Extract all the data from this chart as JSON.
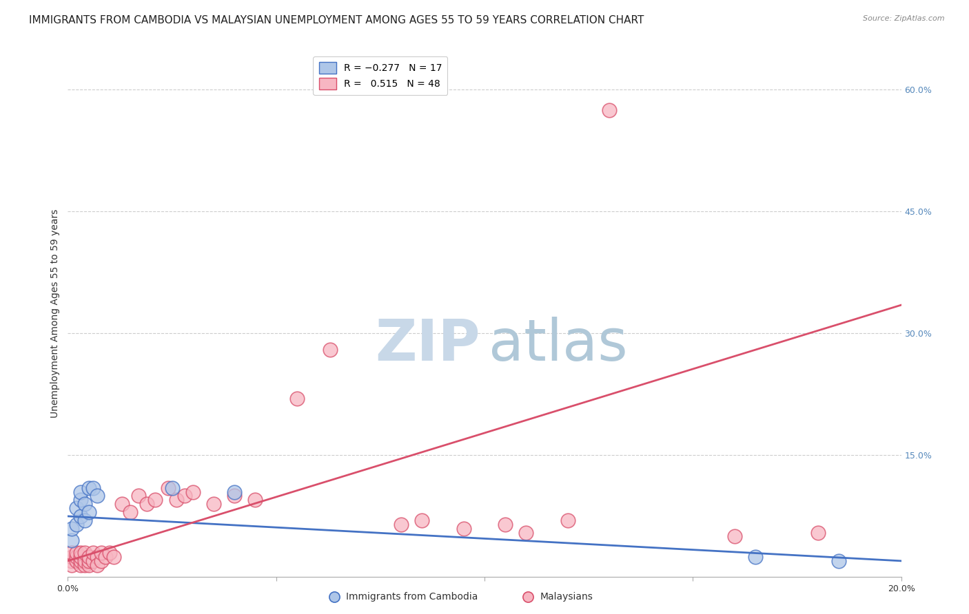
{
  "title": "IMMIGRANTS FROM CAMBODIA VS MALAYSIAN UNEMPLOYMENT AMONG AGES 55 TO 59 YEARS CORRELATION CHART",
  "source": "Source: ZipAtlas.com",
  "ylabel": "Unemployment Among Ages 55 to 59 years",
  "xlim": [
    0.0,
    0.2
  ],
  "ylim": [
    0.0,
    0.65
  ],
  "right_yticks": [
    0.0,
    0.15,
    0.3,
    0.45,
    0.6
  ],
  "right_yticklabels": [
    "",
    "15.0%",
    "30.0%",
    "45.0%",
    "60.0%"
  ],
  "xticks": [
    0.0,
    0.05,
    0.1,
    0.15,
    0.2
  ],
  "xticklabels": [
    "0.0%",
    "",
    "",
    "",
    "20.0%"
  ],
  "scatter_blue_color": "#aec6e8",
  "scatter_pink_color": "#f7b6c2",
  "line_blue_color": "#4472c4",
  "line_pink_color": "#d94f6b",
  "line_blue_y0": 0.075,
  "line_blue_y1": 0.02,
  "line_pink_y0": 0.02,
  "line_pink_y1": 0.335,
  "blue_x": [
    0.001,
    0.001,
    0.002,
    0.002,
    0.003,
    0.003,
    0.003,
    0.004,
    0.004,
    0.005,
    0.005,
    0.006,
    0.007,
    0.025,
    0.04,
    0.165,
    0.185
  ],
  "blue_y": [
    0.045,
    0.06,
    0.065,
    0.085,
    0.075,
    0.095,
    0.105,
    0.07,
    0.09,
    0.08,
    0.11,
    0.11,
    0.1,
    0.11,
    0.105,
    0.025,
    0.02
  ],
  "pink_x": [
    0.001,
    0.001,
    0.001,
    0.001,
    0.002,
    0.002,
    0.002,
    0.003,
    0.003,
    0.003,
    0.003,
    0.004,
    0.004,
    0.004,
    0.005,
    0.005,
    0.005,
    0.006,
    0.006,
    0.007,
    0.007,
    0.008,
    0.008,
    0.009,
    0.01,
    0.011,
    0.013,
    0.015,
    0.017,
    0.019,
    0.021,
    0.024,
    0.026,
    0.028,
    0.03,
    0.035,
    0.04,
    0.045,
    0.055,
    0.08,
    0.085,
    0.095,
    0.105,
    0.11,
    0.12,
    0.16,
    0.18,
    0.063,
    0.13
  ],
  "pink_y": [
    0.02,
    0.025,
    0.03,
    0.015,
    0.02,
    0.025,
    0.03,
    0.015,
    0.02,
    0.025,
    0.03,
    0.015,
    0.02,
    0.03,
    0.015,
    0.02,
    0.025,
    0.02,
    0.03,
    0.025,
    0.015,
    0.02,
    0.03,
    0.025,
    0.03,
    0.025,
    0.09,
    0.08,
    0.1,
    0.09,
    0.095,
    0.11,
    0.095,
    0.1,
    0.105,
    0.09,
    0.1,
    0.095,
    0.22,
    0.065,
    0.07,
    0.06,
    0.065,
    0.055,
    0.07,
    0.05,
    0.055,
    0.28,
    0.575
  ],
  "watermark_zip_color": "#c8d8e8",
  "watermark_atlas_color": "#b0c8d8",
  "background_color": "#ffffff",
  "title_fontsize": 11,
  "axis_label_fontsize": 10,
  "tick_fontsize": 9,
  "legend_fontsize": 10,
  "scatter_size": 220,
  "scatter_linewidth": 1.2,
  "line_width": 2.0
}
